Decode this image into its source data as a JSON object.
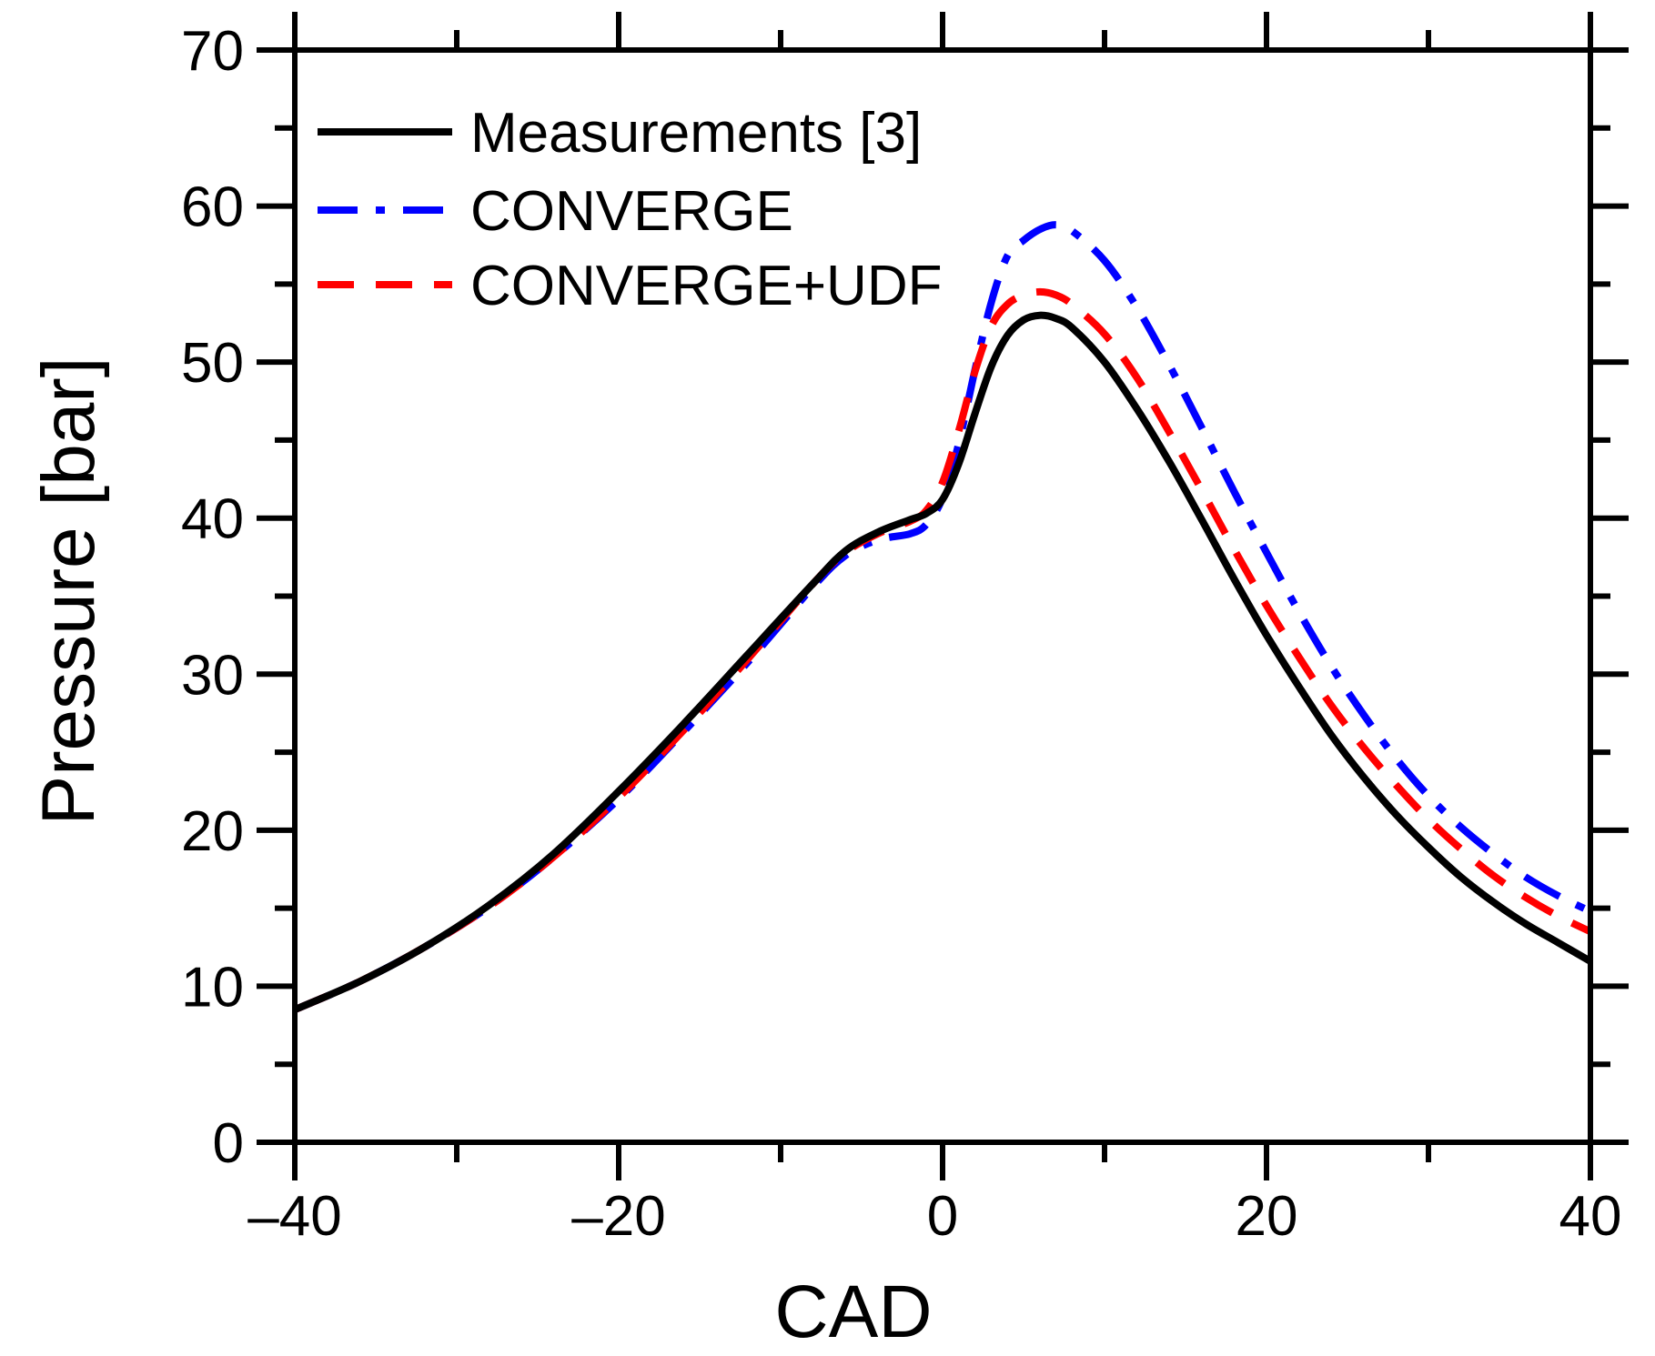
{
  "chart_data": {
    "type": "line",
    "title": "",
    "xlabel": "CAD",
    "ylabel": "Pressure [bar]",
    "xlim": [
      -40,
      40
    ],
    "ylim": [
      0,
      70
    ],
    "x_ticks": [
      -40,
      -20,
      0,
      20,
      40
    ],
    "x_tick_labels": [
      "–40",
      "–20",
      "0",
      "20",
      "40"
    ],
    "x_minor_ticks": [
      -30,
      -10,
      10,
      30
    ],
    "y_ticks": [
      0,
      10,
      20,
      30,
      40,
      50,
      60,
      70
    ],
    "y_tick_labels": [
      "0",
      "10",
      "20",
      "30",
      "40",
      "50",
      "60",
      "70"
    ],
    "y_minor_ticks": [
      5,
      15,
      25,
      35,
      45,
      55,
      65
    ],
    "grid": false,
    "legend_position": "top-left",
    "series": [
      {
        "name": "Measurements [3]",
        "color": "#000000",
        "style": "solid",
        "x": [
          -40,
          -36,
          -32,
          -28,
          -24,
          -20,
          -16,
          -12,
          -8,
          -6,
          -4,
          -2,
          -1,
          0,
          1,
          2,
          3,
          4,
          5,
          6,
          7,
          8,
          10,
          12,
          14,
          16,
          18,
          20,
          22,
          24,
          26,
          28,
          30,
          32,
          34,
          36,
          38,
          40
        ],
        "values": [
          8.5,
          10.3,
          12.5,
          15.2,
          18.5,
          22.5,
          26.8,
          31.3,
          35.8,
          37.9,
          39.1,
          39.9,
          40.3,
          41.2,
          43.5,
          46.7,
          49.7,
          51.7,
          52.7,
          53.0,
          52.8,
          52.2,
          50.0,
          47.0,
          43.6,
          39.9,
          36.1,
          32.5,
          29.2,
          26.1,
          23.4,
          21.0,
          18.9,
          17.0,
          15.4,
          14.0,
          12.8,
          11.6
        ]
      },
      {
        "name": "CONVERGE",
        "color": "#0000ff",
        "style": "dashdot",
        "x": [
          -40,
          -36,
          -32,
          -28,
          -24,
          -20,
          -16,
          -12,
          -8,
          -6,
          -4,
          -2,
          -1,
          0,
          1,
          2,
          3,
          4,
          5,
          6,
          7,
          8,
          10,
          12,
          14,
          16,
          18,
          20,
          22,
          24,
          26,
          28,
          30,
          32,
          34,
          36,
          38,
          40
        ],
        "values": [
          8.5,
          10.3,
          12.5,
          15.1,
          18.3,
          22.0,
          26.3,
          30.8,
          35.6,
          37.6,
          38.6,
          39.0,
          39.6,
          41.3,
          44.8,
          49.5,
          53.8,
          56.8,
          57.8,
          58.5,
          58.8,
          58.4,
          56.5,
          53.5,
          49.8,
          45.8,
          41.7,
          37.8,
          34.0,
          30.5,
          27.4,
          24.6,
          22.2,
          20.2,
          18.5,
          17.0,
          15.8,
          14.8
        ]
      },
      {
        "name": "CONVERGE+UDF",
        "color": "#ff0000",
        "style": "dashed",
        "x": [
          -40,
          -36,
          -32,
          -28,
          -24,
          -20,
          -16,
          -12,
          -8,
          -6,
          -4,
          -2,
          -1,
          0,
          1,
          2,
          3,
          4,
          5,
          6,
          7,
          8,
          10,
          12,
          14,
          16,
          18,
          20,
          22,
          24,
          26,
          28,
          30,
          32,
          34,
          36,
          38,
          40
        ],
        "values": [
          8.5,
          10.3,
          12.5,
          15.1,
          18.3,
          22.1,
          26.4,
          31.0,
          35.8,
          37.8,
          39.0,
          39.8,
          40.5,
          42.3,
          45.6,
          49.4,
          52.3,
          53.7,
          54.3,
          54.5,
          54.3,
          53.7,
          51.8,
          49.0,
          45.5,
          41.8,
          38.0,
          34.4,
          31.1,
          28.0,
          25.3,
          22.9,
          20.7,
          18.8,
          17.1,
          15.7,
          14.5,
          13.5
        ]
      }
    ]
  }
}
